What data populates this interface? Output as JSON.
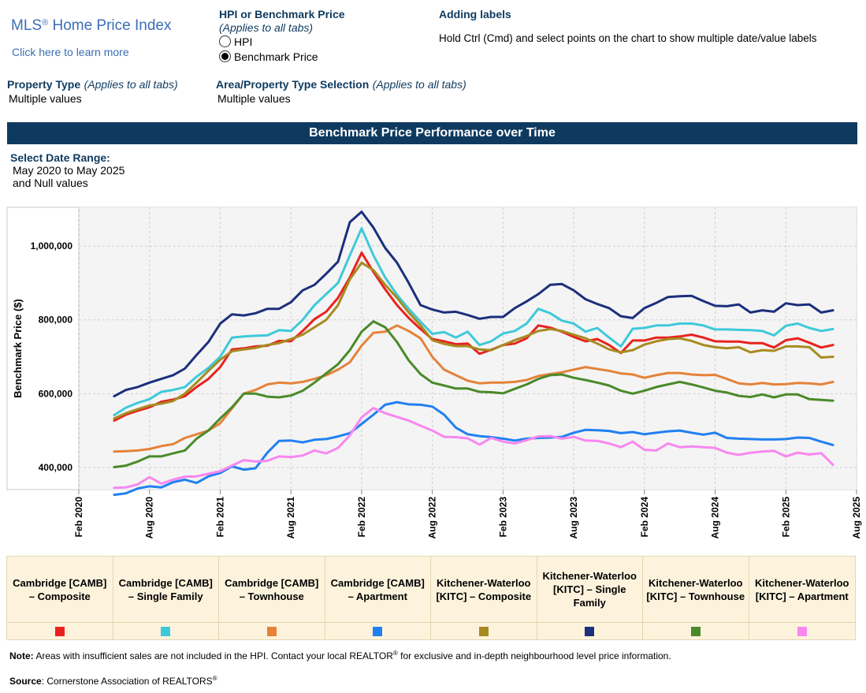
{
  "header": {
    "logo_title": "MLS",
    "logo_reg": "®",
    "logo_title_rest": " Home Price Index",
    "learn_link": "Click here to learn more"
  },
  "hpi_selector": {
    "title": "HPI or Benchmark Price",
    "note": "(Applies to all tabs)",
    "options": [
      {
        "label": "HPI",
        "selected": false
      },
      {
        "label": "Benchmark Price",
        "selected": true
      }
    ]
  },
  "labels_help": {
    "title": "Adding labels",
    "text": "Hold Ctrl (Cmd) and select points on the chart to show multiple date/value labels"
  },
  "filters": {
    "property_type_label": "Property Type",
    "property_type_note": "(Applies to all tabs)",
    "property_type_value": "Multiple values",
    "area_label": "Area/Property Type Selection",
    "area_note": "(Applies to all tabs)",
    "area_value": "Multiple values"
  },
  "banner": "Benchmark Price Performance over Time",
  "date_range": {
    "label": "Select Date Range:",
    "value_line1": "May 2020 to May 2025",
    "value_line2": "and Null values"
  },
  "chart_data": {
    "type": "line",
    "ylabel": "Benchmark Price ($)",
    "xlabel": "",
    "ylim": [
      340000,
      1105000
    ],
    "y_ticks": [
      400000,
      600000,
      800000,
      1000000
    ],
    "y_tick_labels": [
      "400,000",
      "600,000",
      "800,000",
      "1,000,000"
    ],
    "x_ticks": [
      "2020-02",
      "2020-08",
      "2021-02",
      "2021-08",
      "2022-02",
      "2022-08",
      "2023-02",
      "2023-08",
      "2024-02",
      "2024-08",
      "2025-02",
      "2025-08"
    ],
    "x_tick_labels": [
      "Feb 2020",
      "Aug 2020",
      "Feb 2021",
      "Aug 2021",
      "Feb 2022",
      "Aug 2022",
      "Feb 2023",
      "Aug 2023",
      "Feb 2024",
      "Aug 2024",
      "Feb 2025",
      "Aug 2025"
    ],
    "x_range": [
      "2020-02",
      "2025-08"
    ],
    "start_month": "2020-05",
    "grid": true,
    "series": [
      {
        "name": "Cambridge [CAMB] – Composite",
        "color": "#e8231f",
        "values": [
          527000,
          543000,
          554000,
          563000,
          578000,
          584000,
          593000,
          618000,
          640000,
          672000,
          720000,
          723000,
          728000,
          730000,
          743000,
          742000,
          770000,
          802000,
          822000,
          860000,
          915000,
          982000,
          930000,
          883000,
          840000,
          805000,
          775000,
          748000,
          742000,
          734000,
          736000,
          708000,
          719000,
          732000,
          736000,
          750000,
          785000,
          779000,
          768000,
          754000,
          742000,
          748000,
          732000,
          710000,
          744000,
          744000,
          752000,
          752000,
          755000,
          760000,
          752000,
          742000,
          741000,
          741000,
          737000,
          737000,
          725000,
          745000,
          750000,
          738000,
          725000,
          732000
        ]
      },
      {
        "name": "Cambridge [CAMB] – Single Family",
        "color": "#3ec9d9",
        "values": [
          542000,
          562000,
          575000,
          585000,
          605000,
          610000,
          618000,
          646000,
          670000,
          700000,
          752000,
          755000,
          757000,
          758000,
          772000,
          770000,
          800000,
          840000,
          870000,
          900000,
          975000,
          1048000,
          975000,
          915000,
          868000,
          830000,
          795000,
          762000,
          767000,
          752000,
          768000,
          732000,
          742000,
          763000,
          770000,
          790000,
          830000,
          818000,
          798000,
          790000,
          768000,
          778000,
          752000,
          728000,
          776000,
          778000,
          785000,
          785000,
          790000,
          790000,
          785000,
          774000,
          774000,
          773000,
          772000,
          770000,
          758000,
          784000,
          790000,
          778000,
          770000,
          775000
        ]
      },
      {
        "name": "Cambridge [CAMB] – Townhouse",
        "color": "#e5823a",
        "values": [
          443000,
          444000,
          446000,
          450000,
          458000,
          463000,
          480000,
          490000,
          500000,
          520000,
          560000,
          600000,
          610000,
          625000,
          630000,
          628000,
          632000,
          640000,
          650000,
          665000,
          685000,
          730000,
          765000,
          768000,
          785000,
          770000,
          750000,
          700000,
          665000,
          650000,
          635000,
          628000,
          630000,
          630000,
          632000,
          637000,
          648000,
          653000,
          658000,
          665000,
          672000,
          667000,
          662000,
          655000,
          652000,
          643000,
          650000,
          656000,
          656000,
          652000,
          650000,
          651000,
          640000,
          628000,
          625000,
          629000,
          625000,
          626000,
          629000,
          628000,
          625000,
          632000
        ]
      },
      {
        "name": "Cambridge [CAMB] – Apartment",
        "color": "#2180f0",
        "values": [
          326000,
          330000,
          343000,
          349000,
          346000,
          360000,
          367000,
          358000,
          376000,
          385000,
          403000,
          394000,
          398000,
          440000,
          472000,
          473000,
          468000,
          475000,
          477000,
          484000,
          493000,
          518000,
          543000,
          570000,
          577000,
          571000,
          570000,
          565000,
          543000,
          508000,
          490000,
          485000,
          482000,
          478000,
          473000,
          478000,
          480000,
          481000,
          483000,
          494000,
          502000,
          501000,
          499000,
          493000,
          496000,
          490000,
          494000,
          498000,
          500000,
          494000,
          489000,
          494000,
          480000,
          478000,
          477000,
          476000,
          476000,
          477000,
          481000,
          480000,
          470000,
          461000
        ]
      },
      {
        "name": "Kitchener-Waterloo [KITC] – Composite",
        "color": "#a78b20",
        "values": [
          533000,
          547000,
          558000,
          568000,
          573000,
          580000,
          600000,
          630000,
          662000,
          692000,
          715000,
          720000,
          724000,
          732000,
          737000,
          748000,
          760000,
          780000,
          800000,
          840000,
          910000,
          955000,
          935000,
          895000,
          860000,
          820000,
          785000,
          745000,
          735000,
          729000,
          729000,
          720000,
          718000,
          732000,
          745000,
          756000,
          770000,
          775000,
          770000,
          760000,
          750000,
          736000,
          720000,
          712000,
          718000,
          733000,
          742000,
          748000,
          750000,
          743000,
          732000,
          726000,
          723000,
          726000,
          712000,
          718000,
          716000,
          728000,
          728000,
          726000,
          698000,
          700000
        ]
      },
      {
        "name": "Kitchener-Waterloo [KITC] – Single Family",
        "color": "#1c2f7c",
        "values": [
          593000,
          610000,
          618000,
          630000,
          640000,
          650000,
          668000,
          705000,
          740000,
          790000,
          815000,
          812000,
          818000,
          830000,
          830000,
          848000,
          880000,
          895000,
          925000,
          958000,
          1065000,
          1093000,
          1050000,
          995000,
          955000,
          900000,
          840000,
          828000,
          820000,
          822000,
          813000,
          803000,
          808000,
          808000,
          832000,
          850000,
          870000,
          895000,
          897000,
          880000,
          856000,
          843000,
          832000,
          810000,
          805000,
          832000,
          846000,
          862000,
          864000,
          865000,
          851000,
          838000,
          837000,
          842000,
          820000,
          826000,
          822000,
          845000,
          840000,
          842000,
          820000,
          826000
        ]
      },
      {
        "name": "Kitchener-Waterloo [KITC] – Townhouse",
        "color": "#4a8a2a",
        "values": [
          401000,
          405000,
          416000,
          430000,
          430000,
          438000,
          446000,
          478000,
          500000,
          533000,
          563000,
          600000,
          600000,
          592000,
          590000,
          595000,
          608000,
          630000,
          655000,
          680000,
          718000,
          768000,
          796000,
          780000,
          740000,
          690000,
          653000,
          630000,
          622000,
          614000,
          614000,
          605000,
          604000,
          601000,
          613000,
          625000,
          640000,
          650000,
          652000,
          643000,
          637000,
          630000,
          622000,
          608000,
          600000,
          608000,
          618000,
          625000,
          632000,
          625000,
          617000,
          608000,
          603000,
          594000,
          591000,
          598000,
          590000,
          598000,
          598000,
          585000,
          583000,
          581000
        ]
      },
      {
        "name": "Kitchener-Waterloo [KITC] – Apartment",
        "color": "#f887f0",
        "values": [
          345000,
          346000,
          354000,
          374000,
          356000,
          367000,
          375000,
          376000,
          383000,
          390000,
          405000,
          420000,
          416000,
          418000,
          430000,
          428000,
          432000,
          446000,
          438000,
          453000,
          487000,
          536000,
          561000,
          547000,
          537000,
          527000,
          513000,
          500000,
          483000,
          482000,
          479000,
          462000,
          480000,
          470000,
          465000,
          474000,
          484000,
          485000,
          478000,
          483000,
          473000,
          472000,
          465000,
          455000,
          470000,
          448000,
          446000,
          465000,
          455000,
          457000,
          455000,
          453000,
          440000,
          434000,
          440000,
          443000,
          445000,
          430000,
          440000,
          435000,
          439000,
          407000
        ]
      }
    ]
  },
  "footer": {
    "note_label": "Note:",
    "note_text": " Areas with insufficient sales are not included in the HPI. Contact your local REALTOR",
    "note_reg": "®",
    "note_text2": " for exclusive and in-depth neighbourhood level price information.",
    "source_label": "Source",
    "source_text": ": Cornerstone Association of REALTORS",
    "source_reg": "®"
  }
}
